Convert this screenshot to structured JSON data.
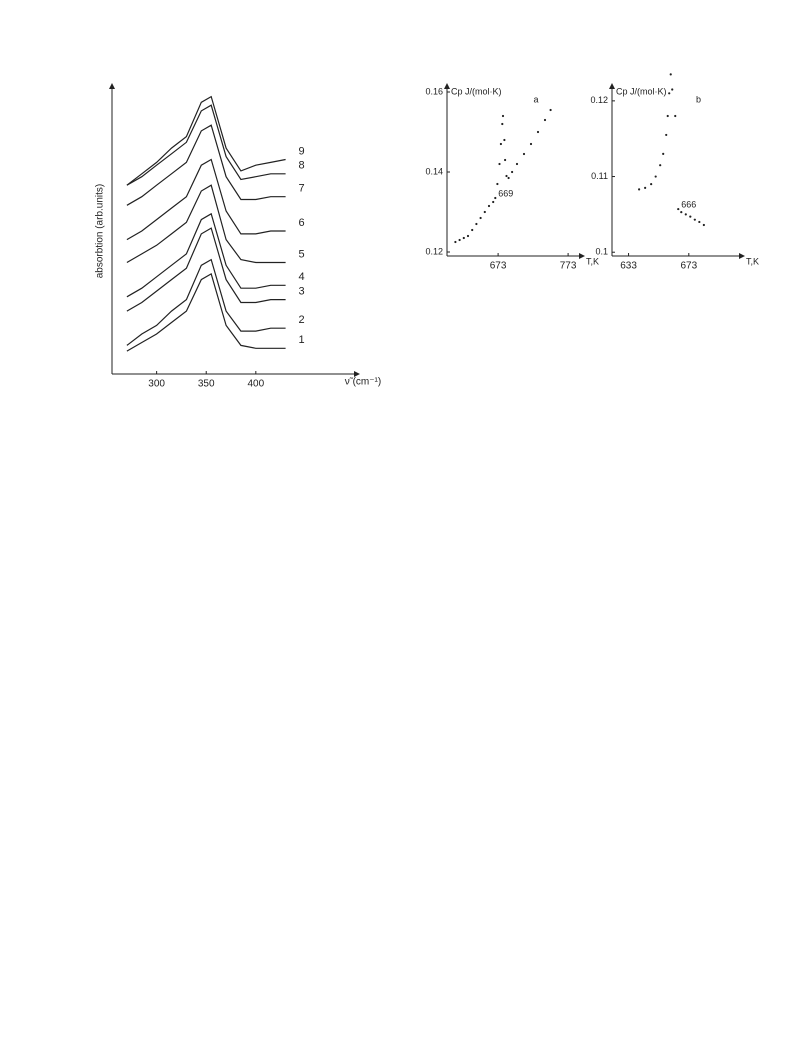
{
  "chart_data": [
    {
      "type": "line",
      "xlabel": "ν̃ (cm⁻¹)",
      "ylabel": "absorbtion (arb.units)",
      "x": [
        270,
        285,
        300,
        315,
        330,
        345,
        355,
        370,
        385,
        400,
        415,
        430
      ],
      "xlim": [
        255,
        500
      ],
      "xticks": [
        300,
        350,
        400
      ],
      "ylim": [
        0,
        100
      ],
      "series": [
        {
          "name": "1",
          "color": "#222",
          "values": [
            8,
            11,
            14,
            18,
            22,
            33,
            35,
            17,
            10,
            9,
            9,
            9
          ]
        },
        {
          "name": "2",
          "color": "#222",
          "values": [
            10,
            14,
            17,
            22,
            26,
            38,
            40,
            22,
            15,
            15,
            16,
            16
          ]
        },
        {
          "name": "3",
          "color": "#222",
          "values": [
            22,
            25,
            29,
            33,
            37,
            49,
            51,
            33,
            25,
            25,
            26,
            26
          ]
        },
        {
          "name": "4",
          "color": "#222",
          "values": [
            27,
            30,
            34,
            38,
            42,
            54,
            56,
            38,
            30,
            30,
            31,
            31
          ]
        },
        {
          "name": "5",
          "color": "#222",
          "values": [
            39,
            42,
            45,
            49,
            53,
            64,
            66,
            47,
            40,
            39,
            39,
            39
          ]
        },
        {
          "name": "6",
          "color": "#222",
          "values": [
            47,
            50,
            54,
            58,
            62,
            73,
            75,
            57,
            49,
            49,
            50,
            50
          ]
        },
        {
          "name": "7",
          "color": "#222",
          "values": [
            59,
            62,
            66,
            70,
            74,
            85,
            87,
            69,
            61,
            61,
            62,
            62
          ]
        },
        {
          "name": "8",
          "color": "#222",
          "values": [
            66,
            69,
            73,
            77,
            81,
            92,
            94,
            76,
            68,
            69,
            70,
            70
          ]
        },
        {
          "name": "9",
          "color": "#222",
          "values": [
            66,
            70,
            74,
            79,
            83,
            95,
            97,
            79,
            71,
            73,
            74,
            75
          ]
        }
      ]
    },
    {
      "type": "scatter",
      "panel": "a",
      "xlabel": "T,K",
      "ylabel": "Cp J/(mol·K)",
      "xlim": [
        600,
        790
      ],
      "xticks": [
        673,
        773
      ],
      "ylim": [
        0.119,
        0.161
      ],
      "yticks": [
        0.12,
        0.14,
        0.16
      ],
      "color": "#222",
      "x": [
        612,
        618,
        624,
        630,
        636,
        642,
        648,
        654,
        660,
        666,
        669,
        672,
        675,
        677,
        679,
        680,
        682,
        683,
        685,
        688,
        693,
        700,
        710,
        720,
        730,
        740,
        748
      ],
      "values": [
        0.1225,
        0.123,
        0.1235,
        0.124,
        0.1255,
        0.127,
        0.1285,
        0.13,
        0.1315,
        0.1325,
        0.1335,
        0.137,
        0.142,
        0.147,
        0.152,
        0.154,
        0.148,
        0.143,
        0.139,
        0.1385,
        0.14,
        0.142,
        0.1445,
        0.147,
        0.15,
        0.153,
        0.1555
      ],
      "annotations": [
        {
          "text": "669",
          "x": 669,
          "y": 0.1335
        }
      ]
    },
    {
      "type": "scatter",
      "panel": "b",
      "xlabel": "T,K",
      "ylabel": "Cp J/(mol·K)",
      "xlim": [
        622,
        707
      ],
      "xticks": [
        633,
        673
      ],
      "ylim": [
        0.0995,
        0.1217
      ],
      "yticks": [
        0.1,
        0.11,
        0.12
      ],
      "color": "#222",
      "x": [
        640,
        644,
        648,
        651,
        654,
        656,
        658,
        659,
        660,
        661,
        662,
        664,
        666,
        668,
        671,
        674,
        677,
        680,
        683
      ],
      "values": [
        0.1083,
        0.1085,
        0.109,
        0.11,
        0.1115,
        0.113,
        0.1155,
        0.118,
        0.121,
        0.1235,
        0.1215,
        0.118,
        0.1057,
        0.1053,
        0.105,
        0.1047,
        0.1043,
        0.104,
        0.1036
      ],
      "annotations": [
        {
          "text": "666",
          "x": 666,
          "y": 0.1057
        }
      ]
    }
  ]
}
